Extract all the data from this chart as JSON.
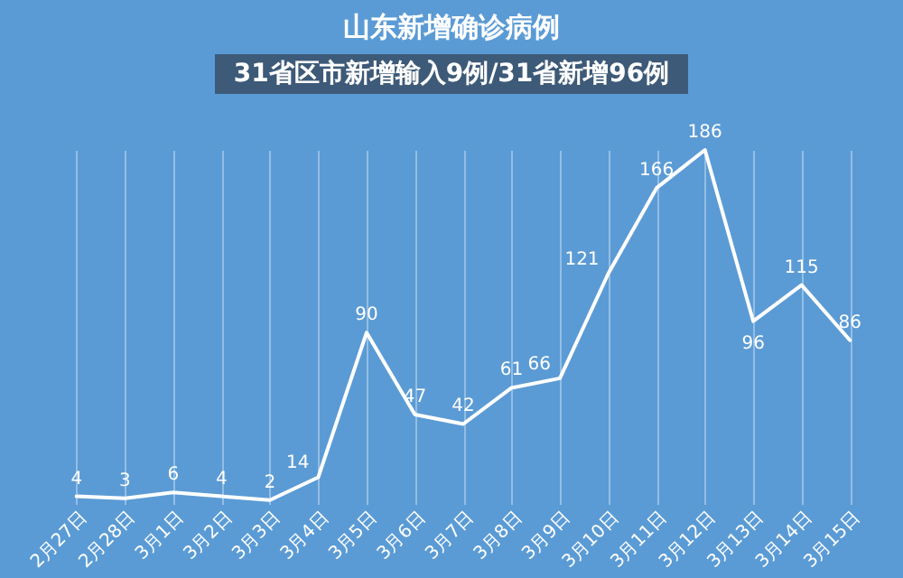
{
  "chart_data": {
    "type": "line",
    "title": "山东新增确诊病例",
    "annotations": [
      "31省区市新增输入9例/31省新增96例"
    ],
    "categories": [
      "2月27日",
      "2月28日",
      "3月1日",
      "3月2日",
      "3月3日",
      "3月4日",
      "3月5日",
      "3月6日",
      "3月7日",
      "3月8日",
      "3月9日",
      "3月10日",
      "3月11日",
      "3月12日",
      "3月13日",
      "3月14日",
      "3月15日"
    ],
    "series": [
      {
        "color": "#ffffff",
        "values": [
          4,
          3,
          6,
          4,
          2,
          14,
          90,
          47,
          42,
          61,
          66,
          121,
          166,
          186,
          96,
          115,
          86
        ]
      }
    ],
    "data_labels": true,
    "grid": "x",
    "marker": "none",
    "line_style": "solid",
    "legend": false
  }
}
